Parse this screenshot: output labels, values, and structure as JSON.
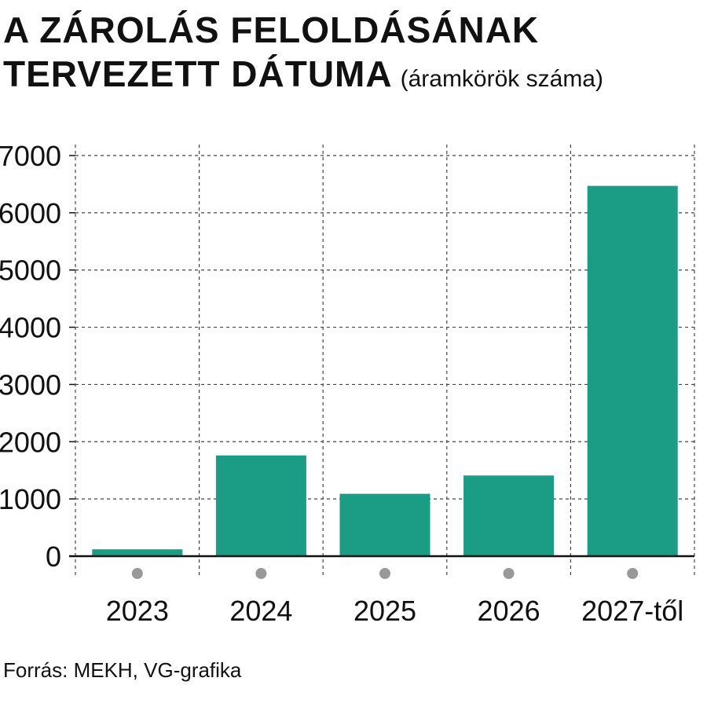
{
  "title": {
    "line1": "A ZÁROLÁS FELOLDÁSÁNAK",
    "line2": "TERVEZETT DÁTUMA",
    "subtitle": "(áramkörök száma)"
  },
  "source": "Forrás: MEKH, VG-grafika",
  "colors": {
    "bar": "#1a9c85",
    "grid": "#444444",
    "axis": "#111111",
    "dot": "#999999"
  },
  "chart_data": {
    "type": "bar",
    "categories": [
      "2023",
      "2024",
      "2025",
      "2026",
      "2027-től"
    ],
    "values": [
      120,
      1760,
      1090,
      1410,
      6470
    ],
    "ylim": [
      0,
      7000
    ],
    "yticks": [
      0,
      1000,
      2000,
      3000,
      4000,
      5000,
      6000,
      7000
    ],
    "grid": true,
    "xlabel": "",
    "ylabel": ""
  }
}
